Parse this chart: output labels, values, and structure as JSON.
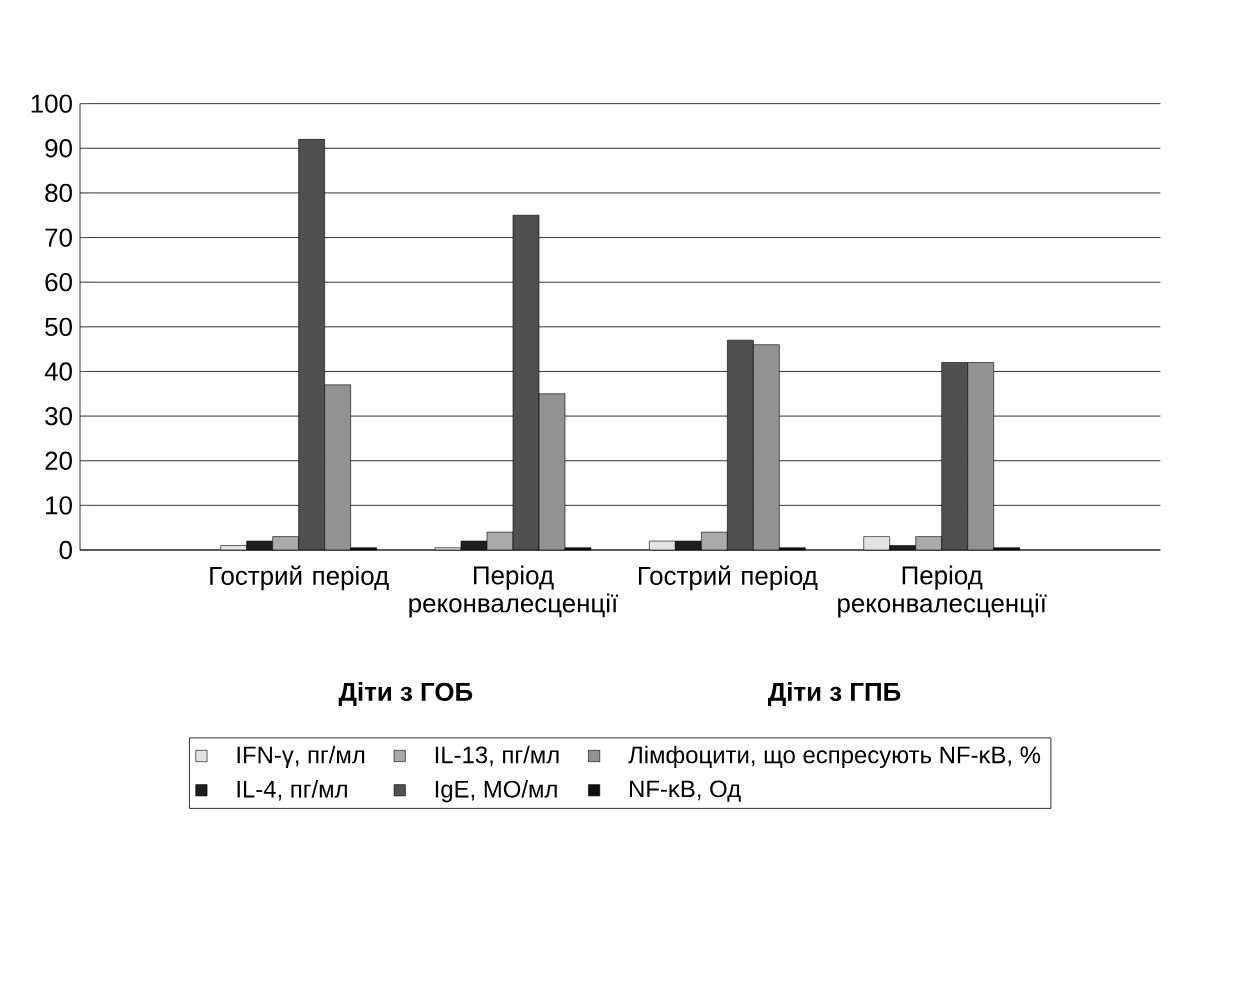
{
  "chart_data": {
    "type": "bar",
    "categories": [
      "Гострий період",
      "Період реконвалесценції",
      "Гострий період",
      "Період реконвалесценції"
    ],
    "series": [
      {
        "name": "IFN-γ, пг/мл",
        "color": "#e2e2e2",
        "values": [
          1,
          0.5,
          2,
          3
        ]
      },
      {
        "name": "IL-4, пг/мл",
        "color": "#1e1e1e",
        "values": [
          2,
          2,
          2,
          1
        ]
      },
      {
        "name": "IL-13, пг/мл",
        "color": "#aaaaaa",
        "values": [
          3,
          4,
          4,
          3
        ]
      },
      {
        "name": "IgE, МО/мл",
        "color": "#505050",
        "values": [
          92,
          75,
          47,
          42
        ]
      },
      {
        "name": "Лімфоцити, що еспресують NF-κB, %",
        "color": "#929292",
        "values": [
          37,
          35,
          46,
          42
        ]
      },
      {
        "name": "NF-κB, Од",
        "color": "#101010",
        "values": [
          0.5,
          0.5,
          0.5,
          0.5
        ]
      }
    ],
    "annotations": [
      "Діти з ГОБ",
      "Діти з ГПБ"
    ],
    "ylim": [
      0,
      100
    ],
    "yticks": [
      0,
      10,
      20,
      30,
      40,
      50,
      60,
      70,
      80,
      90,
      100
    ],
    "grid": "y",
    "legend": "bottom"
  }
}
